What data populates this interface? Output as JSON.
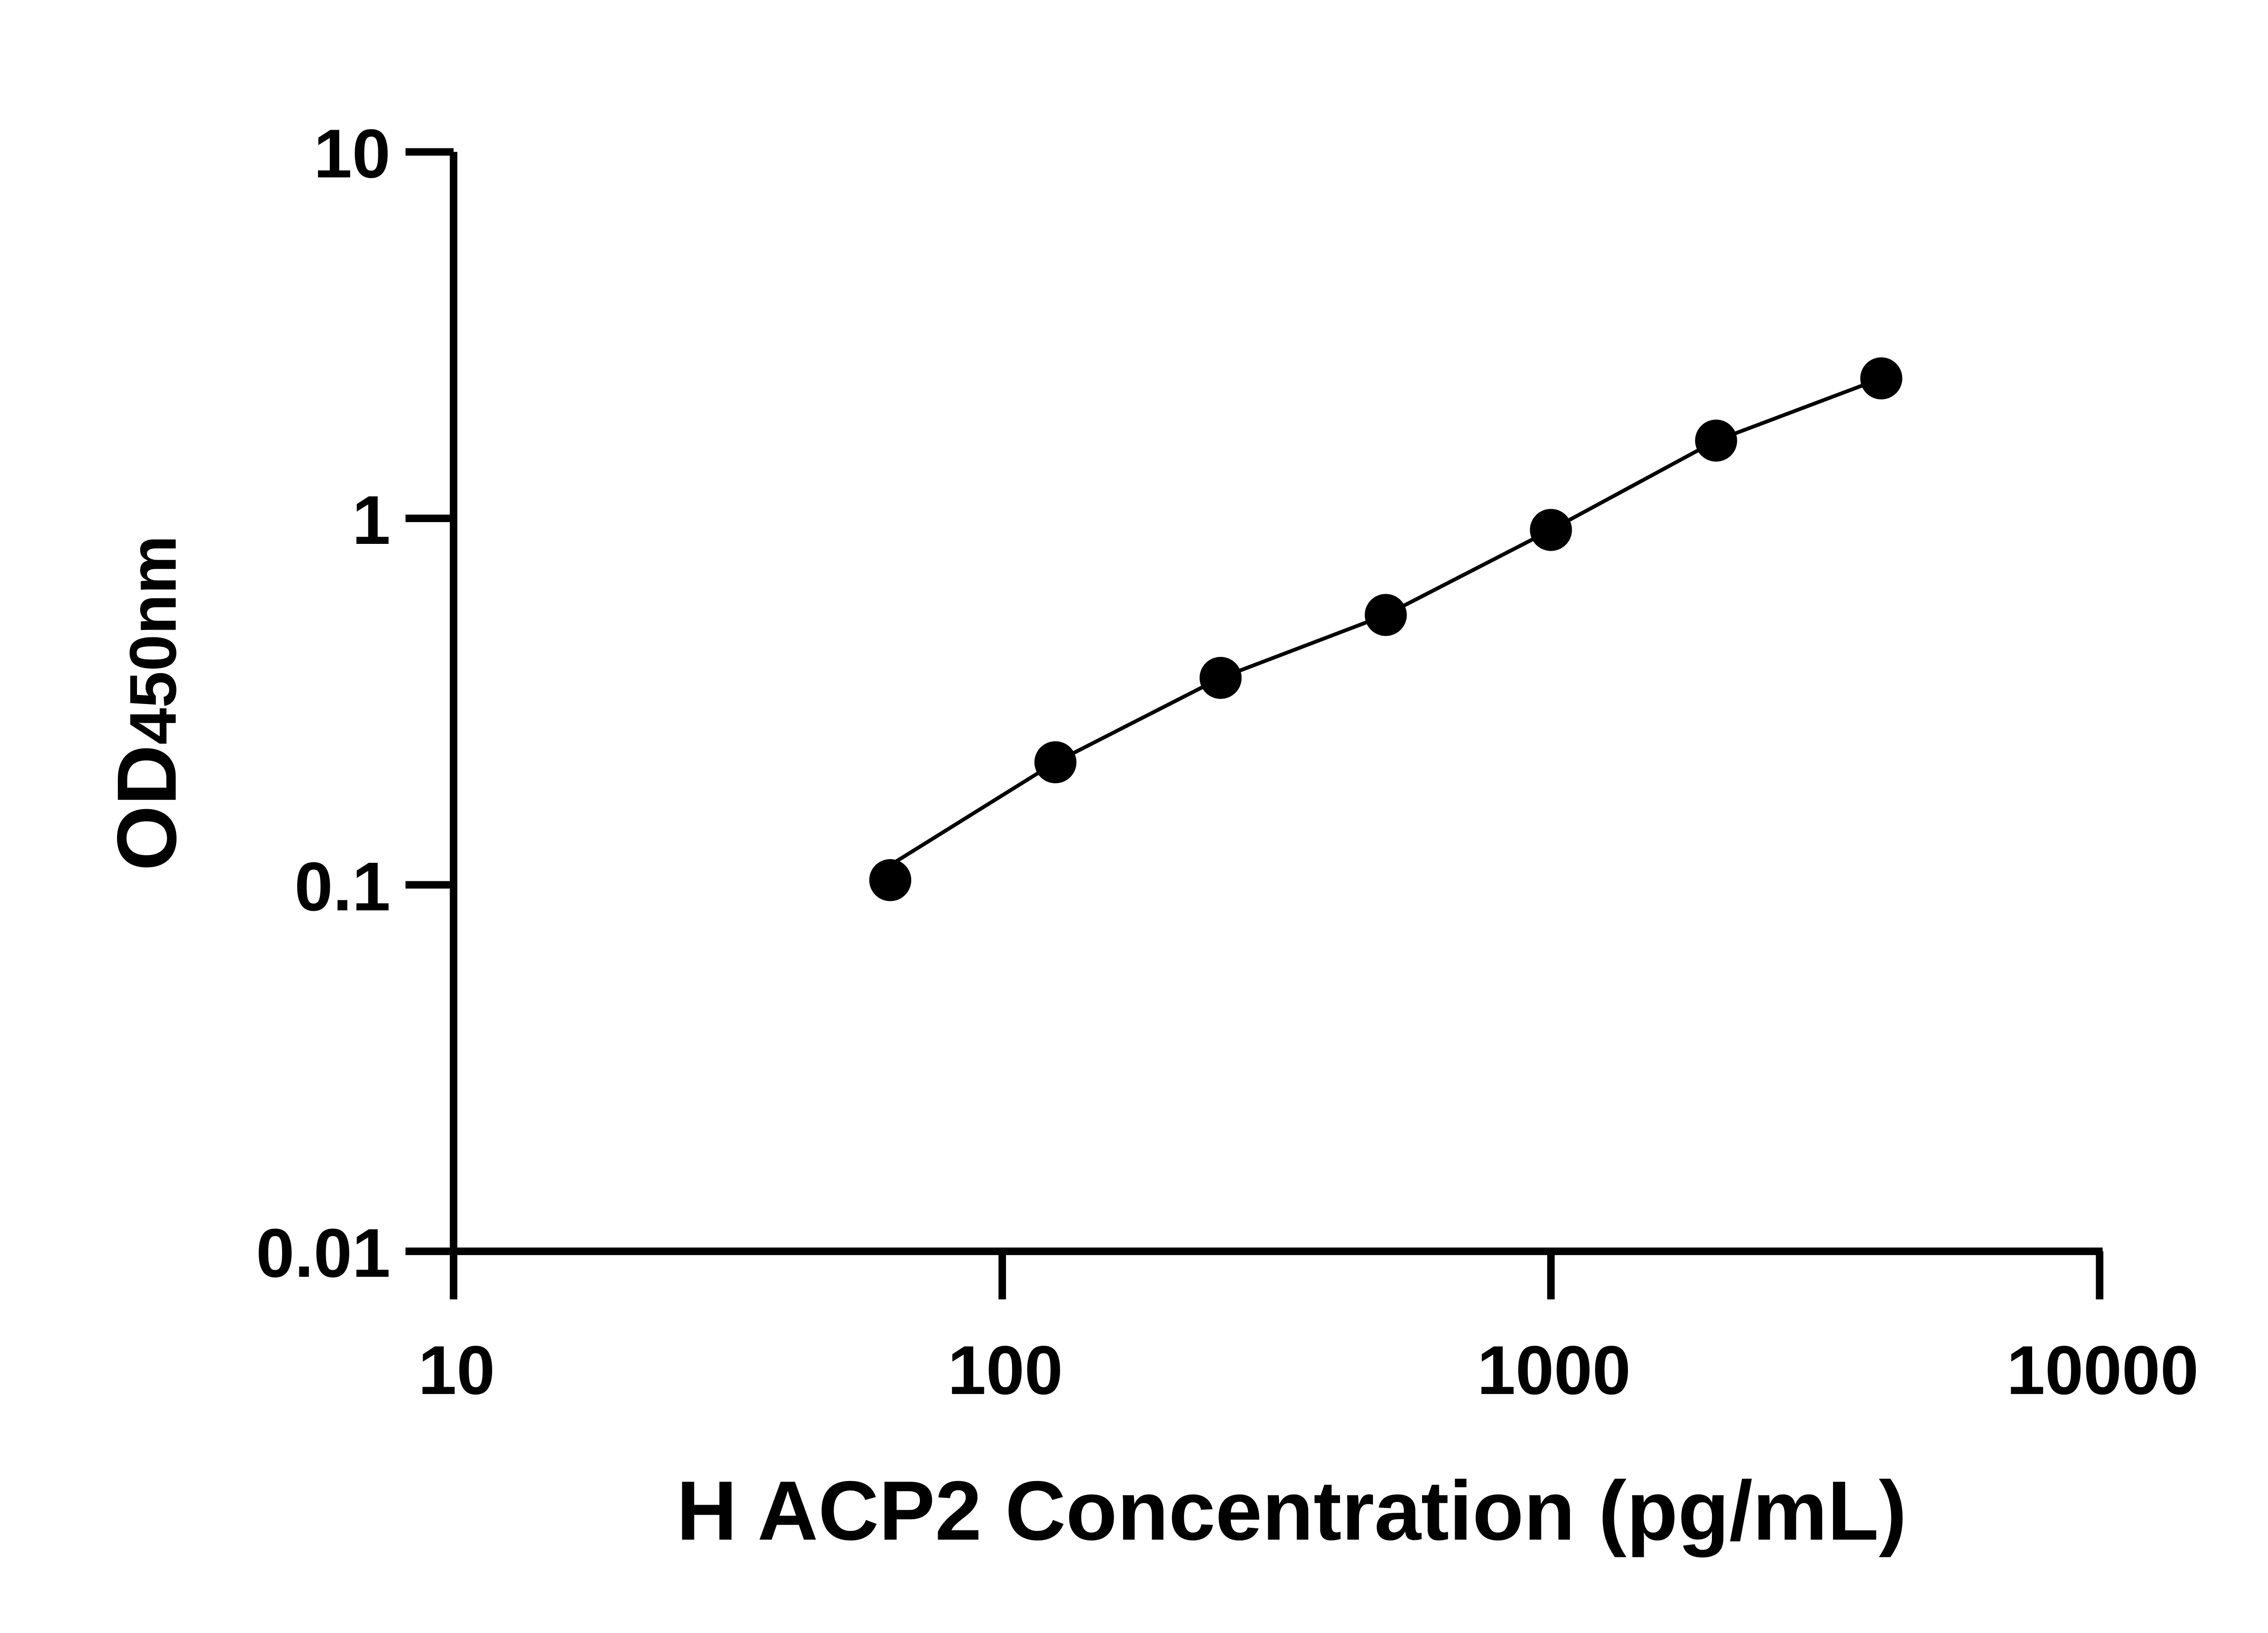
{
  "chart_data": {
    "type": "scatter",
    "title": "",
    "xlabel": "H ACP2 Concentration (pg/mL)",
    "ylabel": {
      "main": "OD",
      "sub": "450nm"
    },
    "x_scale": "log",
    "y_scale": "log",
    "xlim": [
      10,
      10000
    ],
    "ylim": [
      0.01,
      10
    ],
    "x_ticks": [
      "10",
      "100",
      "1000",
      "10000"
    ],
    "y_ticks": [
      "0.01",
      "0.1",
      "1",
      "10"
    ],
    "grid": false,
    "legend": "none",
    "fit_line": true,
    "marker_color": "#000000",
    "x": [
      62.5,
      125,
      250,
      500,
      1000,
      2000,
      4000
    ],
    "y": [
      0.103,
      0.216,
      0.367,
      0.545,
      0.93,
      1.63,
      2.41
    ]
  }
}
